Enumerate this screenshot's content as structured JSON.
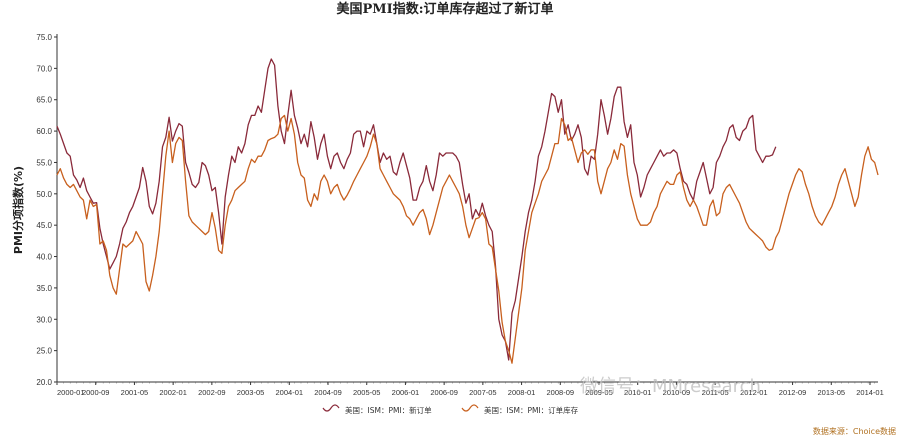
{
  "chart_data": {
    "type": "line",
    "title": "美国PMI指数:订单库存超过了新订单",
    "ylabel": "PMI分项指数(%)",
    "ylim": [
      20,
      75
    ],
    "ytick_labels": [
      "75.0",
      "70.0",
      "65.0",
      "60.0",
      "55.0",
      "50.0",
      "45.0",
      "40.0",
      "35.0",
      "30.0",
      "25.0",
      "20.0"
    ],
    "yticks": [
      75,
      70,
      65,
      60,
      55,
      50,
      45,
      40,
      35,
      30,
      25,
      20
    ],
    "x_labels": [
      "2000-01",
      "2000-09",
      "2001-05",
      "2002-01",
      "2002-09",
      "2003-05",
      "2004-01",
      "2004-09",
      "2005-05",
      "2006-01",
      "2006-09",
      "2007-05",
      "2008-01",
      "2008-09",
      "2009-05",
      "2010-01",
      "2010-09",
      "2011-05",
      "2012-01",
      "2012-09",
      "2013-05",
      "2014-01"
    ],
    "grid": false,
    "legend_position": "bottom",
    "series": [
      {
        "name": "美国：ISM：PMI：新订单",
        "color": "#8a2a3a",
        "values": [
          60.8,
          59.5,
          58,
          56.5,
          56,
          53,
          52.2,
          51,
          52.5,
          50.5,
          49.5,
          48.5,
          48.6,
          44.5,
          42,
          40,
          38,
          39,
          40,
          42,
          44.5,
          45.5,
          47,
          48,
          49.5,
          51,
          54.2,
          52,
          48,
          46.8,
          48.5,
          52,
          57.5,
          59,
          62.2,
          58.4,
          60,
          61.2,
          60.8,
          55,
          53.4,
          51.5,
          51,
          51.8,
          55,
          54.5,
          53,
          50.5,
          51,
          47,
          42,
          49.5,
          53,
          56,
          55,
          57.5,
          56.5,
          58,
          61,
          62.5,
          62.5,
          64,
          63,
          66.5,
          70,
          71.5,
          70.5,
          64,
          60,
          58,
          62.5,
          66.5,
          62.5,
          60.5,
          58,
          59.5,
          57.5,
          61.5,
          59,
          55.5,
          58,
          59.5,
          56,
          54,
          56,
          56.5,
          55,
          54,
          55.5,
          56.5,
          59.5,
          60,
          60,
          57.5,
          60,
          59.5,
          61,
          58,
          55,
          56.5,
          55.5,
          56,
          53.5,
          53,
          55,
          56.5,
          54.5,
          52.5,
          49,
          49,
          51,
          52,
          54.5,
          52,
          50.5,
          53,
          56.5,
          56,
          56.5,
          56.5,
          56.5,
          56,
          55,
          51.5,
          48.5,
          50,
          46,
          47.5,
          46.5,
          48.5,
          46.5,
          45,
          44,
          38.5,
          30,
          27.5,
          26.5,
          23.5,
          31,
          33,
          36.5,
          40,
          44,
          47,
          49,
          52,
          56,
          57.5,
          60,
          63,
          66,
          65.5,
          63,
          65,
          59.5,
          61,
          58.5,
          59.5,
          61,
          59,
          54,
          53,
          56,
          55.5,
          59.5,
          65,
          62.5,
          59.5,
          62,
          65.5,
          67,
          67,
          61.5,
          59,
          61,
          55,
          53,
          49.5,
          51,
          53,
          54,
          55,
          56,
          57,
          56,
          56.5,
          56.5,
          57,
          56.5,
          54,
          52,
          51.5,
          50,
          49,
          52,
          53.5,
          55,
          52.5,
          50,
          51,
          55,
          56,
          57.5,
          58.5,
          60.5,
          61,
          59,
          58.5,
          60,
          60.5,
          62,
          62.5,
          57,
          56,
          55,
          56,
          56,
          56.2,
          57.5
        ]
      },
      {
        "name": "美国：ISM：PMI：订单库存",
        "color": "#c8601e",
        "values": [
          53,
          54,
          52.5,
          51.5,
          51,
          51.5,
          50.5,
          49.5,
          49,
          46,
          49,
          48,
          48.3,
          42,
          42.5,
          41,
          37,
          35,
          34,
          38,
          42,
          41.5,
          42,
          42.5,
          44,
          43,
          42,
          36,
          34.5,
          37,
          40,
          44,
          50,
          56,
          60,
          55,
          58,
          59,
          58.5,
          52,
          46.5,
          45.5,
          45,
          44.5,
          44,
          43.5,
          44,
          47,
          44.5,
          41,
          40.5,
          45,
          48,
          49,
          50.5,
          51,
          51.5,
          52,
          54,
          55.5,
          55,
          56,
          56,
          57,
          58.5,
          58.8,
          59,
          59.5,
          62,
          62.5,
          60,
          62,
          59.5,
          55,
          53,
          52.5,
          49,
          48,
          50,
          49,
          52,
          53,
          52,
          50,
          51,
          51.5,
          50,
          49,
          49.8,
          50.8,
          52,
          53,
          54,
          55,
          56,
          57.5,
          59.5,
          58,
          54,
          53,
          52,
          51,
          50,
          49.5,
          49,
          48,
          46.5,
          46,
          45,
          46,
          47,
          47.5,
          46,
          43.5,
          45,
          47,
          49,
          51,
          52,
          53,
          52,
          51,
          50,
          48,
          45,
          43,
          44.5,
          46,
          46.2,
          47,
          46,
          42,
          41.5,
          38,
          34.5,
          29.5,
          26.5,
          25,
          23,
          27,
          31,
          35,
          41,
          44,
          47,
          48.5,
          50,
          52,
          53,
          54,
          56,
          58,
          58,
          62,
          61,
          58.5,
          59,
          57,
          55,
          56.5,
          57,
          56.3,
          57,
          57,
          52,
          50,
          52,
          54,
          55,
          57,
          55.5,
          58,
          57.6,
          53,
          50,
          48,
          46,
          45,
          45,
          45,
          45.5,
          47,
          48,
          50,
          51,
          52,
          51.5,
          51.5,
          53,
          53.5,
          51,
          49,
          48,
          49,
          48,
          46.5,
          45,
          45,
          48,
          49,
          46.5,
          47,
          50,
          51,
          51.5,
          50.5,
          49.5,
          48.5,
          47,
          45.5,
          44.5,
          44,
          43.5,
          43,
          42.5,
          41.5,
          41,
          41.2,
          43,
          44,
          46,
          48,
          50,
          51.5,
          53,
          54,
          53.5,
          51.5,
          50,
          48,
          46.5,
          45.5,
          45,
          46,
          47,
          48,
          49.5,
          51.5,
          53,
          54,
          52,
          50,
          48,
          49.5,
          53,
          56,
          57.5,
          55.5,
          55,
          53
        ]
      }
    ],
    "source": "数据来源：Choice数据",
    "watermark": "微信号：MMresearch"
  }
}
